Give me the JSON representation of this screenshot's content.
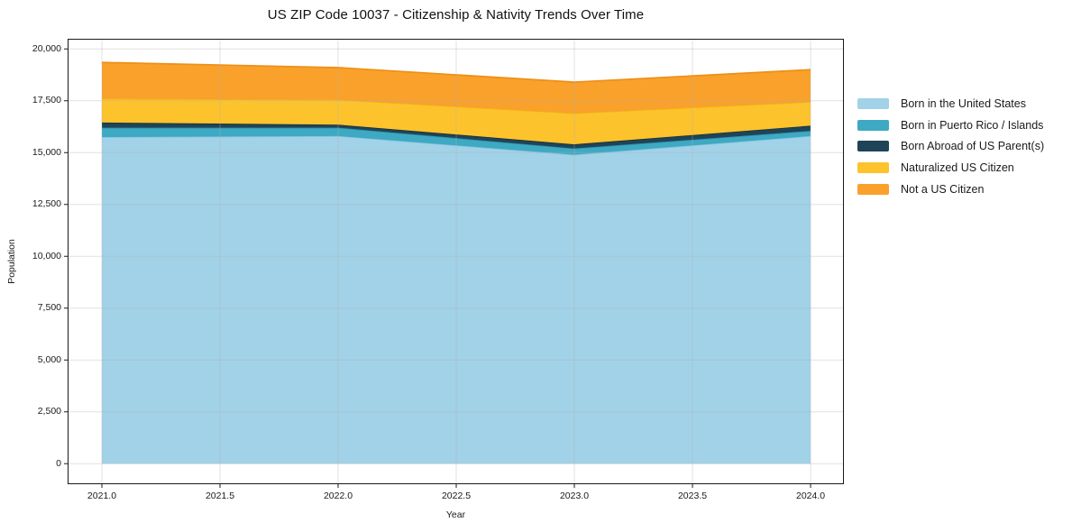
{
  "title": "US ZIP Code 10037 - Citizenship & Nativity Trends Over Time",
  "chart_data": {
    "type": "area",
    "stacked": true,
    "title": "US ZIP Code 10037 - Citizenship & Nativity Trends Over Time",
    "xlabel": "Year",
    "ylabel": "Population",
    "x": [
      2021,
      2022,
      2023,
      2024
    ],
    "series": [
      {
        "name": "Born in the United States",
        "color": "#a1d2e8",
        "edge": "#86c3de",
        "values": [
          15750,
          15800,
          14900,
          15800
        ]
      },
      {
        "name": "Born in Puerto Rico / Islands",
        "color": "#3ea9c2",
        "edge": "#2d94ae",
        "values": [
          450,
          400,
          300,
          250
        ]
      },
      {
        "name": "Born Abroad of US Parent(s)",
        "color": "#1f4458",
        "edge": "#16323f",
        "values": [
          250,
          150,
          200,
          250
        ]
      },
      {
        "name": "Naturalized US Citizen",
        "color": "#fdc32d",
        "edge": "#f2b317",
        "values": [
          1150,
          1200,
          1500,
          1150
        ]
      },
      {
        "name": "Not a US Citizen",
        "color": "#f9a12b",
        "edge": "#ee8f16",
        "values": [
          1750,
          1550,
          1500,
          1550
        ]
      }
    ],
    "stack_totals": [
      19350,
      19100,
      18400,
      19000
    ],
    "xlim": [
      2020.855,
      2024.141
    ],
    "ylim": [
      -990,
      20490
    ],
    "xticks": {
      "values": [
        2021,
        2021.5,
        2022,
        2022.5,
        2023,
        2023.5,
        2024
      ],
      "labels": [
        "2021.0",
        "2021.5",
        "2022.0",
        "2022.5",
        "2023.0",
        "2023.5",
        "2024.0"
      ]
    },
    "yticks": {
      "values": [
        0,
        2500,
        5000,
        7500,
        10000,
        12500,
        15000,
        17500,
        20000
      ],
      "labels": [
        "0",
        "2,500",
        "5,000",
        "7,500",
        "10,000",
        "12,500",
        "15,000",
        "17,500",
        "20,000"
      ]
    },
    "grid": true,
    "legend_position": "right of axes"
  },
  "colors": {
    "background": "#ffffff",
    "spine": "#1a1a1a",
    "grid": "rgba(177,177,177,0.38)",
    "text": "#1a1a1a"
  }
}
